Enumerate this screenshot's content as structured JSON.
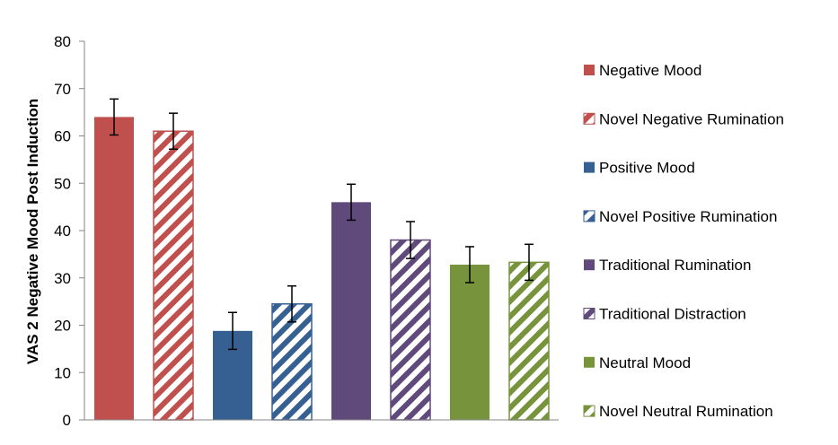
{
  "chart_data": {
    "type": "bar",
    "ylabel": "VAS 2 Negative Mood Post Induction",
    "ylim": [
      0,
      80
    ],
    "yticks": [
      0,
      10,
      20,
      30,
      40,
      50,
      60,
      70,
      80
    ],
    "grid": false,
    "legend_position": "right",
    "series": [
      {
        "name": "Negative Mood",
        "value": 64,
        "error": 3.8,
        "color": "#c0504d",
        "pattern": "solid"
      },
      {
        "name": "Novel Negative Rumination",
        "value": 61,
        "error": 3.8,
        "color": "#c0504d",
        "pattern": "hatched"
      },
      {
        "name": "Positive Mood",
        "value": 18.8,
        "error": 3.9,
        "color": "#376092",
        "pattern": "solid"
      },
      {
        "name": "Novel Positive Rumination",
        "value": 24.5,
        "error": 3.8,
        "color": "#376092",
        "pattern": "hatched"
      },
      {
        "name": "Traditional Rumination",
        "value": 46,
        "error": 3.8,
        "color": "#604a7b",
        "pattern": "solid"
      },
      {
        "name": "Traditional Distraction",
        "value": 38,
        "error": 3.9,
        "color": "#604a7b",
        "pattern": "hatched"
      },
      {
        "name": "Neutral Mood",
        "value": 32.8,
        "error": 3.8,
        "color": "#77933c",
        "pattern": "solid"
      },
      {
        "name": "Novel Neutral Rumination",
        "value": 33.3,
        "error": 3.8,
        "color": "#77933c",
        "pattern": "hatched"
      }
    ]
  }
}
